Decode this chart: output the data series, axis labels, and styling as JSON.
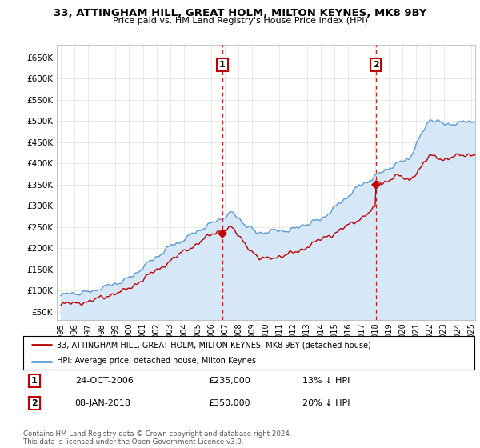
{
  "title": "33, ATTINGHAM HILL, GREAT HOLM, MILTON KEYNES, MK8 9BY",
  "subtitle": "Price paid vs. HM Land Registry's House Price Index (HPI)",
  "ylabel_ticks": [
    "£50K",
    "£100K",
    "£150K",
    "£200K",
    "£250K",
    "£300K",
    "£350K",
    "£400K",
    "£450K",
    "£500K",
    "£550K",
    "£600K",
    "£650K"
  ],
  "ytick_values": [
    50000,
    100000,
    150000,
    200000,
    250000,
    300000,
    350000,
    400000,
    450000,
    500000,
    550000,
    600000,
    650000
  ],
  "ylim": [
    30000,
    680000
  ],
  "xlim_start": 1994.7,
  "xlim_end": 2025.3,
  "sale1_x": 2006.82,
  "sale1_y": 235000,
  "sale1_label": "1",
  "sale2_x": 2018.03,
  "sale2_y": 350000,
  "sale2_label": "2",
  "hpi_color": "#5b9bd5",
  "hpi_fill_color": "#d6e8f7",
  "property_color": "#c00000",
  "vline_color": "#c00000",
  "legend_label1": "33, ATTINGHAM HILL, GREAT HOLM, MILTON KEYNES, MK8 9BY (detached house)",
  "legend_label2": "HPI: Average price, detached house, Milton Keynes",
  "annot1_date": "24-OCT-2006",
  "annot1_price": "£235,000",
  "annot1_hpi": "13% ↓ HPI",
  "annot2_date": "08-JAN-2018",
  "annot2_price": "£350,000",
  "annot2_hpi": "20% ↓ HPI",
  "footer": "Contains HM Land Registry data © Crown copyright and database right 2024.\nThis data is licensed under the Open Government Licence v3.0.",
  "bg_color": "#ffffff",
  "plot_bg_color": "#ffffff",
  "grid_color": "#d8d8d8"
}
